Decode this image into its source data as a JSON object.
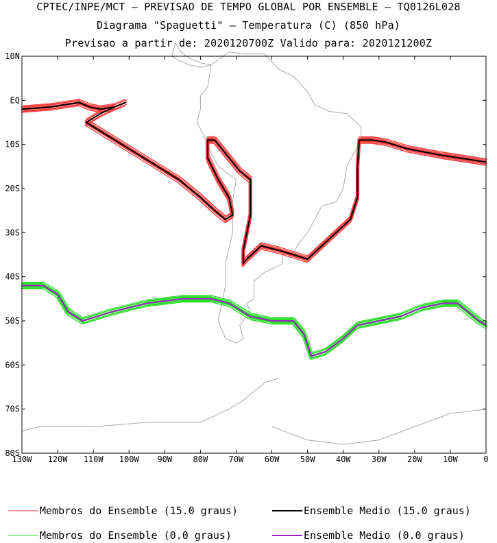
{
  "header": {
    "line1": "CPTEC/INPE/MCT – PREVISAO DE TEMPO GLOBAL POR ENSEMBLE – TQ0126L028",
    "line2": "Diagrama \"Spaguetti\" – Temperatura (C) (850 hPa)",
    "line3": "Previsao a partir de: 2020120700Z  Valido para: 2020121200Z"
  },
  "chart_data": {
    "type": "line",
    "chart_kind": "spaghetti contour map",
    "title": "Diagrama \"Spaguetti\" – Temperatura (C) (850 hPa)",
    "xlim": [
      -130,
      0
    ],
    "ylim": [
      -80,
      10
    ],
    "x_ticks": [
      {
        "value": -130,
        "label": "130W"
      },
      {
        "value": -120,
        "label": "120W"
      },
      {
        "value": -110,
        "label": "110W"
      },
      {
        "value": -100,
        "label": "100W"
      },
      {
        "value": -90,
        "label": "90W"
      },
      {
        "value": -80,
        "label": "80W"
      },
      {
        "value": -70,
        "label": "70W"
      },
      {
        "value": -60,
        "label": "60W"
      },
      {
        "value": -50,
        "label": "50W"
      },
      {
        "value": -40,
        "label": "40W"
      },
      {
        "value": -30,
        "label": "30W"
      },
      {
        "value": -20,
        "label": "20W"
      },
      {
        "value": -10,
        "label": "10W"
      },
      {
        "value": 0,
        "label": "0"
      }
    ],
    "y_ticks": [
      {
        "value": 10,
        "label": "10N"
      },
      {
        "value": 0,
        "label": "EQ"
      },
      {
        "value": -10,
        "label": "10S"
      },
      {
        "value": -20,
        "label": "20S"
      },
      {
        "value": -30,
        "label": "30S"
      },
      {
        "value": -40,
        "label": "40S"
      },
      {
        "value": -50,
        "label": "50S"
      },
      {
        "value": -60,
        "label": "60S"
      },
      {
        "value": -70,
        "label": "70S"
      },
      {
        "value": -80,
        "label": "80S"
      }
    ],
    "grid": false,
    "legend_position": "bottom",
    "series": [
      {
        "name": "Membros do Ensemble (15.0 graus)",
        "color": "#f03c3c",
        "width": 1,
        "members": 12,
        "points": [
          [
            -130,
            -2
          ],
          [
            -122,
            -1.5
          ],
          [
            -118,
            -1
          ],
          [
            -114,
            -0.5
          ],
          [
            -111,
            -1.5
          ],
          [
            -108,
            -2
          ],
          [
            -104,
            -1.5
          ],
          [
            -101,
            -0.5
          ],
          [
            -104,
            -1.5
          ],
          [
            -108,
            -3
          ],
          [
            -112,
            -5
          ],
          [
            -108,
            -7
          ],
          [
            -102,
            -10
          ],
          [
            -94,
            -14
          ],
          [
            -86,
            -18
          ],
          [
            -80,
            -22
          ],
          [
            -76,
            -25
          ],
          [
            -73,
            -27
          ],
          [
            -71,
            -26
          ],
          [
            -72,
            -22
          ],
          [
            -75,
            -18
          ],
          [
            -78,
            -13
          ],
          [
            -78,
            -9
          ],
          [
            -76,
            -9
          ],
          [
            -72,
            -13
          ],
          [
            -69,
            -16
          ],
          [
            -66,
            -18
          ],
          [
            -66,
            -22
          ],
          [
            -66,
            -26
          ],
          [
            -67,
            -30
          ],
          [
            -68,
            -34
          ],
          [
            -68,
            -37
          ],
          [
            -67,
            -36
          ],
          [
            -63,
            -33
          ],
          [
            -58,
            -34
          ],
          [
            -54,
            -35
          ],
          [
            -50,
            -36
          ],
          [
            -46,
            -33
          ],
          [
            -42,
            -30
          ],
          [
            -38,
            -27
          ],
          [
            -36,
            -22
          ],
          [
            -36,
            -15
          ],
          [
            -35.5,
            -9
          ],
          [
            -32,
            -9
          ],
          [
            -28,
            -9.5
          ],
          [
            -22,
            -11
          ],
          [
            -12,
            -12.5
          ],
          [
            0,
            -14
          ]
        ]
      },
      {
        "name": "Ensemble Medio (15.0 graus)",
        "color": "#000000",
        "width": 2,
        "points": [
          [
            -130,
            -2
          ],
          [
            -122,
            -1.5
          ],
          [
            -118,
            -1
          ],
          [
            -114,
            -0.5
          ],
          [
            -111,
            -1.5
          ],
          [
            -108,
            -2
          ],
          [
            -104,
            -1.5
          ],
          [
            -101,
            -0.5
          ],
          [
            -104,
            -1.5
          ],
          [
            -108,
            -3
          ],
          [
            -112,
            -5
          ],
          [
            -108,
            -7
          ],
          [
            -102,
            -10
          ],
          [
            -94,
            -14
          ],
          [
            -86,
            -18
          ],
          [
            -80,
            -22
          ],
          [
            -76,
            -25
          ],
          [
            -73,
            -27
          ],
          [
            -71,
            -26
          ],
          [
            -72,
            -22
          ],
          [
            -75,
            -18
          ],
          [
            -78,
            -13
          ],
          [
            -78,
            -9
          ],
          [
            -76,
            -9
          ],
          [
            -72,
            -13
          ],
          [
            -69,
            -16
          ],
          [
            -66,
            -18
          ],
          [
            -66,
            -22
          ],
          [
            -66,
            -26
          ],
          [
            -67,
            -30
          ],
          [
            -68,
            -34
          ],
          [
            -68,
            -37
          ],
          [
            -67,
            -36
          ],
          [
            -63,
            -33
          ],
          [
            -58,
            -34
          ],
          [
            -54,
            -35
          ],
          [
            -50,
            -36
          ],
          [
            -46,
            -33
          ],
          [
            -42,
            -30
          ],
          [
            -38,
            -27
          ],
          [
            -36,
            -22
          ],
          [
            -36,
            -15
          ],
          [
            -35.5,
            -9
          ],
          [
            -32,
            -9
          ],
          [
            -28,
            -9.5
          ],
          [
            -22,
            -11
          ],
          [
            -12,
            -12.5
          ],
          [
            0,
            -14
          ]
        ]
      },
      {
        "name": "Membros do Ensemble (0.0 graus)",
        "color": "#22dd22",
        "width": 1,
        "members": 12,
        "points": [
          [
            -130,
            -42
          ],
          [
            -124,
            -42
          ],
          [
            -120,
            -44
          ],
          [
            -117,
            -48
          ],
          [
            -113,
            -50
          ],
          [
            -105,
            -48
          ],
          [
            -95,
            -46
          ],
          [
            -85,
            -45
          ],
          [
            -77,
            -45
          ],
          [
            -72,
            -46
          ],
          [
            -66,
            -49
          ],
          [
            -60,
            -50
          ],
          [
            -54,
            -50
          ],
          [
            -51,
            -53
          ],
          [
            -49,
            -58
          ],
          [
            -45,
            -57
          ],
          [
            -40,
            -54
          ],
          [
            -36,
            -51
          ],
          [
            -30,
            -50
          ],
          [
            -24,
            -49
          ],
          [
            -18,
            -47
          ],
          [
            -12,
            -46
          ],
          [
            -8,
            -46
          ],
          [
            -5,
            -48
          ],
          [
            -2,
            -50
          ],
          [
            0,
            -51
          ]
        ]
      },
      {
        "name": "Ensemble Medio (0.0 graus)",
        "color": "#a020c8",
        "width": 2,
        "points": [
          [
            -130,
            -42
          ],
          [
            -124,
            -42
          ],
          [
            -120,
            -44
          ],
          [
            -117,
            -48
          ],
          [
            -113,
            -50
          ],
          [
            -105,
            -48
          ],
          [
            -95,
            -46
          ],
          [
            -85,
            -45
          ],
          [
            -77,
            -45
          ],
          [
            -72,
            -46
          ],
          [
            -66,
            -49
          ],
          [
            -60,
            -50
          ],
          [
            -54,
            -50
          ],
          [
            -51,
            -53
          ],
          [
            -49,
            -58
          ],
          [
            -45,
            -57
          ],
          [
            -40,
            -54
          ],
          [
            -36,
            -51
          ],
          [
            -30,
            -50
          ],
          [
            -24,
            -49
          ],
          [
            -18,
            -47
          ],
          [
            -12,
            -46
          ],
          [
            -8,
            -46
          ],
          [
            -5,
            -48
          ],
          [
            -2,
            -50
          ],
          [
            0,
            -51
          ]
        ]
      }
    ],
    "land": [
      {
        "name": "south-america",
        "points": [
          [
            -77,
            8
          ],
          [
            -72,
            11
          ],
          [
            -68,
            10.5
          ],
          [
            -62,
            10.5
          ],
          [
            -58,
            7
          ],
          [
            -54,
            5.5
          ],
          [
            -50,
            2
          ],
          [
            -48,
            -1
          ],
          [
            -44,
            -2.5
          ],
          [
            -39,
            -3
          ],
          [
            -35,
            -6
          ],
          [
            -35,
            -9
          ],
          [
            -37,
            -12
          ],
          [
            -39,
            -15
          ],
          [
            -40,
            -20
          ],
          [
            -42,
            -23
          ],
          [
            -46,
            -24
          ],
          [
            -48,
            -27
          ],
          [
            -50,
            -30
          ],
          [
            -52,
            -32
          ],
          [
            -54,
            -34.5
          ],
          [
            -57,
            -35
          ],
          [
            -57,
            -37
          ],
          [
            -62,
            -39
          ],
          [
            -65,
            -41
          ],
          [
            -65,
            -45
          ],
          [
            -67,
            -46
          ],
          [
            -66,
            -48
          ],
          [
            -69,
            -51
          ],
          [
            -68,
            -54
          ],
          [
            -70,
            -55
          ],
          [
            -73,
            -54
          ],
          [
            -75,
            -50
          ],
          [
            -74,
            -46
          ],
          [
            -73,
            -42
          ],
          [
            -73,
            -37
          ],
          [
            -71,
            -30
          ],
          [
            -71,
            -23
          ],
          [
            -70,
            -18
          ],
          [
            -75,
            -15
          ],
          [
            -77,
            -12
          ],
          [
            -79,
            -8
          ],
          [
            -81,
            -5
          ],
          [
            -80,
            -2
          ],
          [
            -80,
            1
          ],
          [
            -78,
            3
          ],
          [
            -77,
            8
          ]
        ]
      },
      {
        "name": "central-america",
        "points": [
          [
            -77,
            8
          ],
          [
            -80,
            8.5
          ],
          [
            -83,
            9.5
          ],
          [
            -85.5,
            11
          ],
          [
            -87,
            13
          ],
          [
            -88,
            10
          ],
          [
            -86,
            9
          ],
          [
            -83,
            8
          ],
          [
            -80,
            7.5
          ],
          [
            -77,
            8
          ]
        ]
      },
      {
        "name": "antarctic-peninsula",
        "points": [
          [
            -58,
            -63
          ],
          [
            -62,
            -64
          ],
          [
            -65,
            -66
          ],
          [
            -68,
            -68
          ],
          [
            -72,
            -70
          ],
          [
            -80,
            -73
          ],
          [
            -95,
            -73
          ],
          [
            -110,
            -74
          ],
          [
            -125,
            -74
          ],
          [
            -130,
            -75
          ]
        ]
      },
      {
        "name": "antarctic-coast-east",
        "points": [
          [
            -60,
            -74
          ],
          [
            -50,
            -77
          ],
          [
            -40,
            -78
          ],
          [
            -30,
            -77
          ],
          [
            -20,
            -74
          ],
          [
            -10,
            -71
          ],
          [
            0,
            -70
          ]
        ]
      }
    ]
  },
  "legend": [
    {
      "label": "Membros do Ensemble (15.0 graus)",
      "color": "#f03c3c",
      "stroke": 1
    },
    {
      "label": "Ensemble Medio (15.0 graus)",
      "color": "#000000",
      "stroke": 2
    },
    {
      "label": "Membros do Ensemble (0.0 graus)",
      "color": "#22dd22",
      "stroke": 1
    },
    {
      "label": "Ensemble Medio (0.0 graus)",
      "color": "#a020c8",
      "stroke": 2
    }
  ]
}
